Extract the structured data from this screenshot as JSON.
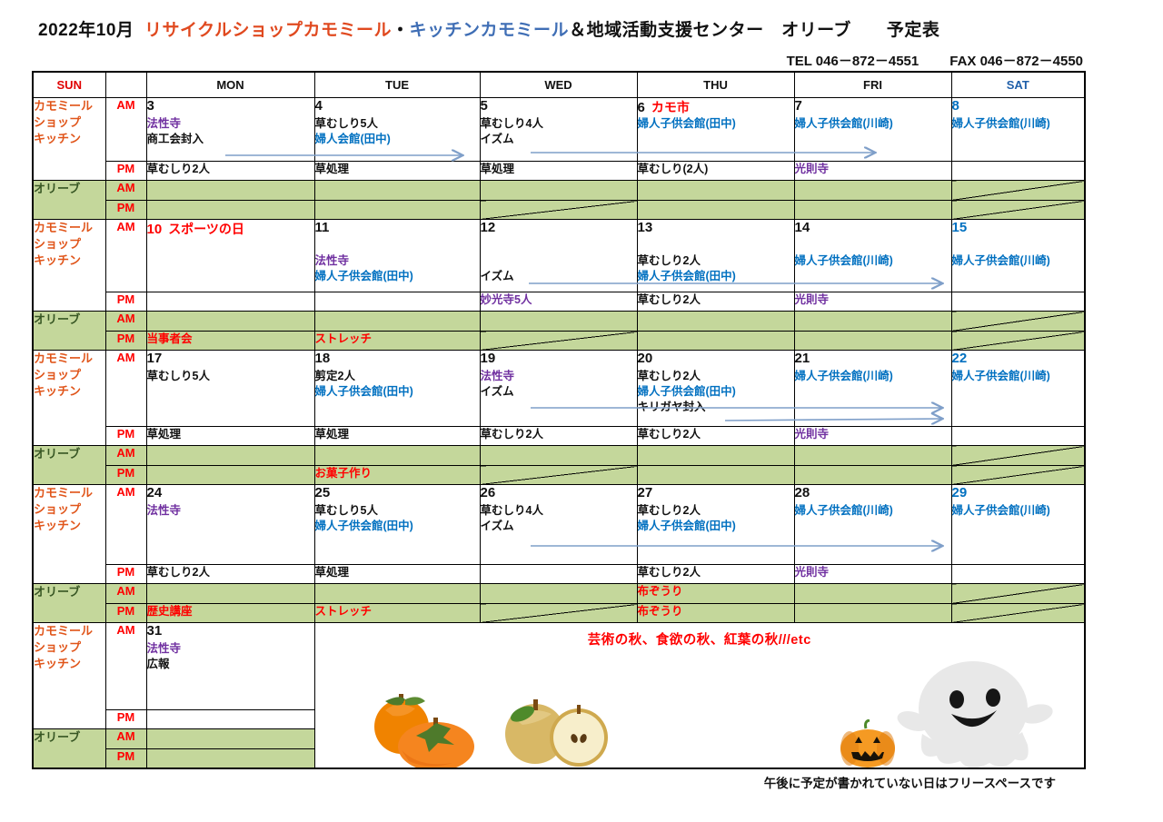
{
  "page": {
    "title": {
      "prefix": "2022年10月",
      "shop": "リサイクルショップカモミール",
      "dot": "・",
      "kitchen": "キッチンカモミール",
      "suffix": "＆地域活動支援センター　オリーブ　　予定表"
    },
    "contact": {
      "tel": "TEL 046－872－4551",
      "fax": "FAX 046－872－4550"
    },
    "footnote": "午後に予定が書かれていない日はフリースペースです"
  },
  "colors": {
    "black": "#111111",
    "red": "#ff0000",
    "blue": "#0070c0",
    "purple": "#7030a0",
    "orange": "#e0551a",
    "dark_green": "#375623",
    "olive_bg": "#c4d79b",
    "arrow_blue": "#7f9fc9"
  },
  "header": {
    "days": [
      "SUN",
      "",
      "MON",
      "TUE",
      "WED",
      "THU",
      "FRI",
      "SAT"
    ]
  },
  "labels": {
    "kamomile": [
      "カモミール",
      "ショップ",
      "キッチン"
    ],
    "olive": "オリーブ",
    "am": "AM",
    "pm": "PM"
  },
  "weeks": [
    {
      "am": [
        {
          "day": "3",
          "lines": [
            {
              "t": "法性寺",
              "c": "purple"
            },
            {
              "t": "商工会封入",
              "c": "black"
            }
          ]
        },
        {
          "day": "4",
          "lines": [
            {
              "t": "草むしり5人",
              "c": "black"
            },
            {
              "t": "婦人会館(田中)",
              "c": "blue"
            }
          ]
        },
        {
          "day": "5",
          "lines": [
            {
              "t": "草むしり4人",
              "c": "black"
            },
            {
              "t": "イズム",
              "c": "black"
            }
          ]
        },
        {
          "day": "6",
          "suffix": "カモ市",
          "lines": [
            {
              "t": "婦人子供会館(田中)",
              "c": "blue"
            }
          ]
        },
        {
          "day": "7",
          "lines": [
            {
              "t": "婦人子供会館(川崎)",
              "c": "blue"
            }
          ]
        },
        {
          "day": "8",
          "dc": "blue",
          "lines": [
            {
              "t": "婦人子供会館(川崎)",
              "c": "blue"
            }
          ]
        }
      ],
      "pm": [
        {
          "lines": [
            {
              "t": "草むしり2人",
              "c": "black"
            }
          ]
        },
        {
          "lines": [
            {
              "t": "草処理",
              "c": "black"
            }
          ]
        },
        {
          "lines": [
            {
              "t": "草処理",
              "c": "black"
            }
          ]
        },
        {
          "lines": [
            {
              "t": "草むしり(2人)",
              "c": "black"
            }
          ]
        },
        {
          "lines": [
            {
              "t": "光則寺",
              "c": "purple"
            }
          ]
        },
        {
          "lines": []
        }
      ],
      "olive_am": [
        {
          "lines": []
        },
        {
          "lines": []
        },
        {
          "lines": []
        },
        {
          "lines": []
        },
        {
          "lines": []
        },
        {
          "lines": [],
          "diag": true
        }
      ],
      "olive_pm": [
        {
          "lines": []
        },
        {
          "lines": []
        },
        {
          "lines": [],
          "diag": true
        },
        {
          "lines": []
        },
        {
          "lines": []
        },
        {
          "lines": [],
          "diag": true
        }
      ]
    },
    {
      "am": [
        {
          "day": "10",
          "dc": "red",
          "suffix": "スポーツの日",
          "lines": []
        },
        {
          "day": "11",
          "lines": [
            {
              "t": "",
              "c": "black"
            },
            {
              "t": "法性寺",
              "c": "purple"
            },
            {
              "t": "婦人子供会館(田中)",
              "c": "blue"
            }
          ]
        },
        {
          "day": "12",
          "lines": [
            {
              "t": "",
              "c": "black"
            },
            {
              "t": "",
              "c": "black"
            },
            {
              "t": "イズム",
              "c": "black"
            }
          ]
        },
        {
          "day": "13",
          "lines": [
            {
              "t": "",
              "c": "black"
            },
            {
              "t": "草むしり2人",
              "c": "black"
            },
            {
              "t": "婦人子供会館(田中)",
              "c": "blue"
            }
          ]
        },
        {
          "day": "14",
          "lines": [
            {
              "t": "",
              "c": "black"
            },
            {
              "t": "婦人子供会館(川崎)",
              "c": "blue"
            }
          ]
        },
        {
          "day": "15",
          "dc": "blue",
          "lines": [
            {
              "t": "",
              "c": "black"
            },
            {
              "t": "婦人子供会館(川崎)",
              "c": "blue"
            }
          ]
        }
      ],
      "pm": [
        {
          "lines": []
        },
        {
          "lines": []
        },
        {
          "lines": [
            {
              "t": "妙光寺5人",
              "c": "purple"
            }
          ]
        },
        {
          "lines": [
            {
              "t": "草むしり2人",
              "c": "black"
            }
          ]
        },
        {
          "lines": [
            {
              "t": "光則寺",
              "c": "purple"
            }
          ]
        },
        {
          "lines": []
        }
      ],
      "olive_am": [
        {
          "lines": []
        },
        {
          "lines": []
        },
        {
          "lines": []
        },
        {
          "lines": []
        },
        {
          "lines": []
        },
        {
          "lines": [],
          "diag": true
        }
      ],
      "olive_pm": [
        {
          "lines": [
            {
              "t": "当事者会",
              "c": "red"
            }
          ]
        },
        {
          "lines": [
            {
              "t": "ストレッチ",
              "c": "red"
            }
          ]
        },
        {
          "lines": [],
          "diag": true
        },
        {
          "lines": []
        },
        {
          "lines": []
        },
        {
          "lines": [],
          "diag": true
        }
      ]
    },
    {
      "am": [
        {
          "day": "17",
          "lines": [
            {
              "t": "草むしり5人",
              "c": "black"
            }
          ]
        },
        {
          "day": "18",
          "lines": [
            {
              "t": "剪定2人",
              "c": "black"
            },
            {
              "t": "婦人子供会館(田中)",
              "c": "blue"
            }
          ]
        },
        {
          "day": "19",
          "lines": [
            {
              "t": "法性寺",
              "c": "purple"
            },
            {
              "t": "イズム",
              "c": "black"
            }
          ]
        },
        {
          "day": "20",
          "lines": [
            {
              "t": "草むしり2人",
              "c": "black"
            },
            {
              "t": "婦人子供会館(田中)",
              "c": "blue"
            },
            {
              "t": "キリガヤ封入",
              "c": "black"
            }
          ]
        },
        {
          "day": "21",
          "lines": [
            {
              "t": "婦人子供会館(川崎)",
              "c": "blue"
            }
          ]
        },
        {
          "day": "22",
          "dc": "blue",
          "lines": [
            {
              "t": "婦人子供会館(川崎)",
              "c": "blue"
            }
          ]
        }
      ],
      "pm": [
        {
          "lines": [
            {
              "t": "草処理",
              "c": "black"
            }
          ]
        },
        {
          "lines": [
            {
              "t": "草処理",
              "c": "black"
            }
          ]
        },
        {
          "lines": [
            {
              "t": "草むしり2人",
              "c": "black"
            }
          ]
        },
        {
          "lines": [
            {
              "t": "草むしり2人",
              "c": "black"
            }
          ]
        },
        {
          "lines": [
            {
              "t": "光則寺",
              "c": "purple"
            }
          ]
        },
        {
          "lines": []
        }
      ],
      "olive_am": [
        {
          "lines": []
        },
        {
          "lines": []
        },
        {
          "lines": []
        },
        {
          "lines": []
        },
        {
          "lines": []
        },
        {
          "lines": [],
          "diag": true
        }
      ],
      "olive_pm": [
        {
          "lines": []
        },
        {
          "lines": [
            {
              "t": "お菓子作り",
              "c": "red"
            }
          ]
        },
        {
          "lines": [],
          "diag": true
        },
        {
          "lines": []
        },
        {
          "lines": []
        },
        {
          "lines": [],
          "diag": true
        }
      ]
    },
    {
      "am": [
        {
          "day": "24",
          "lines": [
            {
              "t": "法性寺",
              "c": "purple"
            }
          ]
        },
        {
          "day": "25",
          "lines": [
            {
              "t": "草むしり5人",
              "c": "black"
            },
            {
              "t": "婦人子供会館(田中)",
              "c": "blue"
            }
          ]
        },
        {
          "day": "26",
          "lines": [
            {
              "t": "草むしり4人",
              "c": "black"
            },
            {
              "t": "イズム",
              "c": "black"
            }
          ]
        },
        {
          "day": "27",
          "lines": [
            {
              "t": "草むしり2人",
              "c": "black"
            },
            {
              "t": "婦人子供会館(田中)",
              "c": "blue"
            }
          ]
        },
        {
          "day": "28",
          "lines": [
            {
              "t": "婦人子供会館(川崎)",
              "c": "blue"
            }
          ]
        },
        {
          "day": "29",
          "dc": "blue",
          "lines": [
            {
              "t": "婦人子供会館(川崎)",
              "c": "blue"
            }
          ]
        }
      ],
      "pm": [
        {
          "lines": [
            {
              "t": "草むしり2人",
              "c": "black"
            }
          ]
        },
        {
          "lines": [
            {
              "t": "草処理",
              "c": "black"
            }
          ]
        },
        {
          "lines": []
        },
        {
          "lines": [
            {
              "t": "草むしり2人",
              "c": "black"
            }
          ]
        },
        {
          "lines": [
            {
              "t": "光則寺",
              "c": "purple"
            }
          ]
        },
        {
          "lines": []
        }
      ],
      "olive_am": [
        {
          "lines": []
        },
        {
          "lines": []
        },
        {
          "lines": []
        },
        {
          "lines": [
            {
              "t": "布ぞうり",
              "c": "red"
            }
          ]
        },
        {
          "lines": []
        },
        {
          "lines": [],
          "diag": true
        }
      ],
      "olive_pm": [
        {
          "lines": [
            {
              "t": "歴史講座",
              "c": "red"
            }
          ]
        },
        {
          "lines": [
            {
              "t": "ストレッチ",
              "c": "red"
            }
          ]
        },
        {
          "lines": [],
          "diag": true
        },
        {
          "lines": [
            {
              "t": "布ぞうり",
              "c": "red"
            }
          ]
        },
        {
          "lines": []
        },
        {
          "lines": [],
          "diag": true
        }
      ]
    },
    {
      "am": [
        {
          "day": "31",
          "lines": [
            {
              "t": "法性寺",
              "c": "purple"
            },
            {
              "t": "広報",
              "c": "black"
            }
          ]
        }
      ],
      "pm": [
        {
          "lines": []
        }
      ],
      "olive_am": [
        {
          "lines": []
        }
      ],
      "olive_pm": [
        {
          "lines": []
        }
      ]
    }
  ],
  "bottom_area": {
    "message": "芸術の秋、食欲の秋、紅葉の秋///etc",
    "illustrations": [
      "persimmon",
      "pear",
      "jack-o-lantern-pumpkin",
      "ghost"
    ]
  }
}
